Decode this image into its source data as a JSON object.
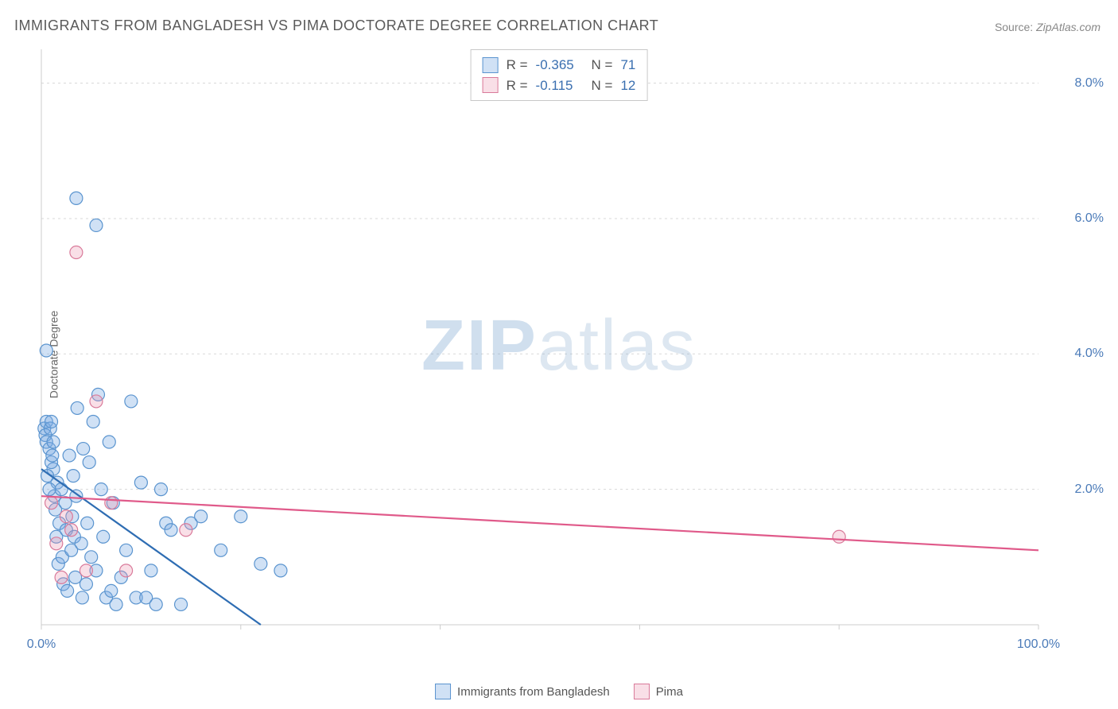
{
  "title": "IMMIGRANTS FROM BANGLADESH VS PIMA DOCTORATE DEGREE CORRELATION CHART",
  "source_label": "Source:",
  "source_value": "ZipAtlas.com",
  "watermark_zip": "ZIP",
  "watermark_atlas": "atlas",
  "y_axis_label": "Doctorate Degree",
  "chart": {
    "type": "scatter",
    "xlim": [
      0,
      100
    ],
    "ylim": [
      0,
      8.5
    ],
    "x_ticks": [
      0,
      20,
      40,
      60,
      80,
      100
    ],
    "x_tick_labels_shown": {
      "0": "0.0%",
      "100": "100.0%"
    },
    "y_ticks": [
      2,
      4,
      6,
      8
    ],
    "y_tick_labels": {
      "2": "2.0%",
      "4": "4.0%",
      "6": "6.0%",
      "8": "8.0%"
    },
    "grid_color": "#d8d8d8",
    "axis_color": "#cccccc",
    "background_color": "#ffffff",
    "marker_radius": 8,
    "marker_stroke_width": 1.2,
    "line_width": 2.2,
    "series": [
      {
        "name": "Immigrants from Bangladesh",
        "color_fill": "rgba(120, 170, 225, 0.35)",
        "color_stroke": "#5a94cf",
        "line_color": "#2e6db3",
        "R": "-0.365",
        "N": "71",
        "trend_line": {
          "x1": 0,
          "y1": 2.3,
          "x2": 22,
          "y2": 0
        },
        "points": [
          [
            0.3,
            2.9
          ],
          [
            0.4,
            2.8
          ],
          [
            0.5,
            2.7
          ],
          [
            0.5,
            3.0
          ],
          [
            0.8,
            2.6
          ],
          [
            0.9,
            2.9
          ],
          [
            1.0,
            3.0
          ],
          [
            1.2,
            2.3
          ],
          [
            1.3,
            1.9
          ],
          [
            1.4,
            1.7
          ],
          [
            1.5,
            1.3
          ],
          [
            1.6,
            2.1
          ],
          [
            1.7,
            0.9
          ],
          [
            1.8,
            1.5
          ],
          [
            2.0,
            2.0
          ],
          [
            2.1,
            1.0
          ],
          [
            2.2,
            0.6
          ],
          [
            2.4,
            1.8
          ],
          [
            2.5,
            1.4
          ],
          [
            2.6,
            0.5
          ],
          [
            2.8,
            2.5
          ],
          [
            3.0,
            1.1
          ],
          [
            3.1,
            1.6
          ],
          [
            3.2,
            2.2
          ],
          [
            3.3,
            1.3
          ],
          [
            3.4,
            0.7
          ],
          [
            3.5,
            1.9
          ],
          [
            3.6,
            3.2
          ],
          [
            4.0,
            1.2
          ],
          [
            4.1,
            0.4
          ],
          [
            4.2,
            2.6
          ],
          [
            4.5,
            0.6
          ],
          [
            4.6,
            1.5
          ],
          [
            4.8,
            2.4
          ],
          [
            5.0,
            1.0
          ],
          [
            5.2,
            3.0
          ],
          [
            5.5,
            0.8
          ],
          [
            5.7,
            3.4
          ],
          [
            6.0,
            2.0
          ],
          [
            6.2,
            1.3
          ],
          [
            6.5,
            0.4
          ],
          [
            6.8,
            2.7
          ],
          [
            7.0,
            0.5
          ],
          [
            7.2,
            1.8
          ],
          [
            7.5,
            0.3
          ],
          [
            8.0,
            0.7
          ],
          [
            8.5,
            1.1
          ],
          [
            9.0,
            3.3
          ],
          [
            9.5,
            0.4
          ],
          [
            10.0,
            2.1
          ],
          [
            10.5,
            0.4
          ],
          [
            11.0,
            0.8
          ],
          [
            11.5,
            0.3
          ],
          [
            12.0,
            2.0
          ],
          [
            12.5,
            1.5
          ],
          [
            13.0,
            1.4
          ],
          [
            14.0,
            0.3
          ],
          [
            15.0,
            1.5
          ],
          [
            16.0,
            1.6
          ],
          [
            18.0,
            1.1
          ],
          [
            20.0,
            1.6
          ],
          [
            22.0,
            0.9
          ],
          [
            24.0,
            0.8
          ],
          [
            3.5,
            6.3
          ],
          [
            5.5,
            5.9
          ],
          [
            0.5,
            4.05
          ],
          [
            1.0,
            2.4
          ],
          [
            1.1,
            2.5
          ],
          [
            1.2,
            2.7
          ],
          [
            0.6,
            2.2
          ],
          [
            0.8,
            2.0
          ]
        ]
      },
      {
        "name": "Pima",
        "color_fill": "rgba(235, 150, 175, 0.30)",
        "color_stroke": "#d97a9a",
        "line_color": "#e05a8a",
        "R": "-0.115",
        "N": "12",
        "trend_line": {
          "x1": 0,
          "y1": 1.9,
          "x2": 100,
          "y2": 1.1
        },
        "points": [
          [
            1.0,
            1.8
          ],
          [
            1.5,
            1.2
          ],
          [
            2.0,
            0.7
          ],
          [
            2.5,
            1.6
          ],
          [
            3.0,
            1.4
          ],
          [
            3.5,
            5.5
          ],
          [
            4.5,
            0.8
          ],
          [
            5.5,
            3.3
          ],
          [
            7.0,
            1.8
          ],
          [
            8.5,
            0.8
          ],
          [
            14.5,
            1.4
          ],
          [
            80.0,
            1.3
          ]
        ]
      }
    ]
  },
  "stats_labels": {
    "R": "R =",
    "N": "N ="
  },
  "legend_bottom": [
    {
      "label": "Immigrants from Bangladesh",
      "fill": "rgba(120, 170, 225, 0.35)",
      "stroke": "#5a94cf"
    },
    {
      "label": "Pima",
      "fill": "rgba(235, 150, 175, 0.30)",
      "stroke": "#d97a9a"
    }
  ]
}
